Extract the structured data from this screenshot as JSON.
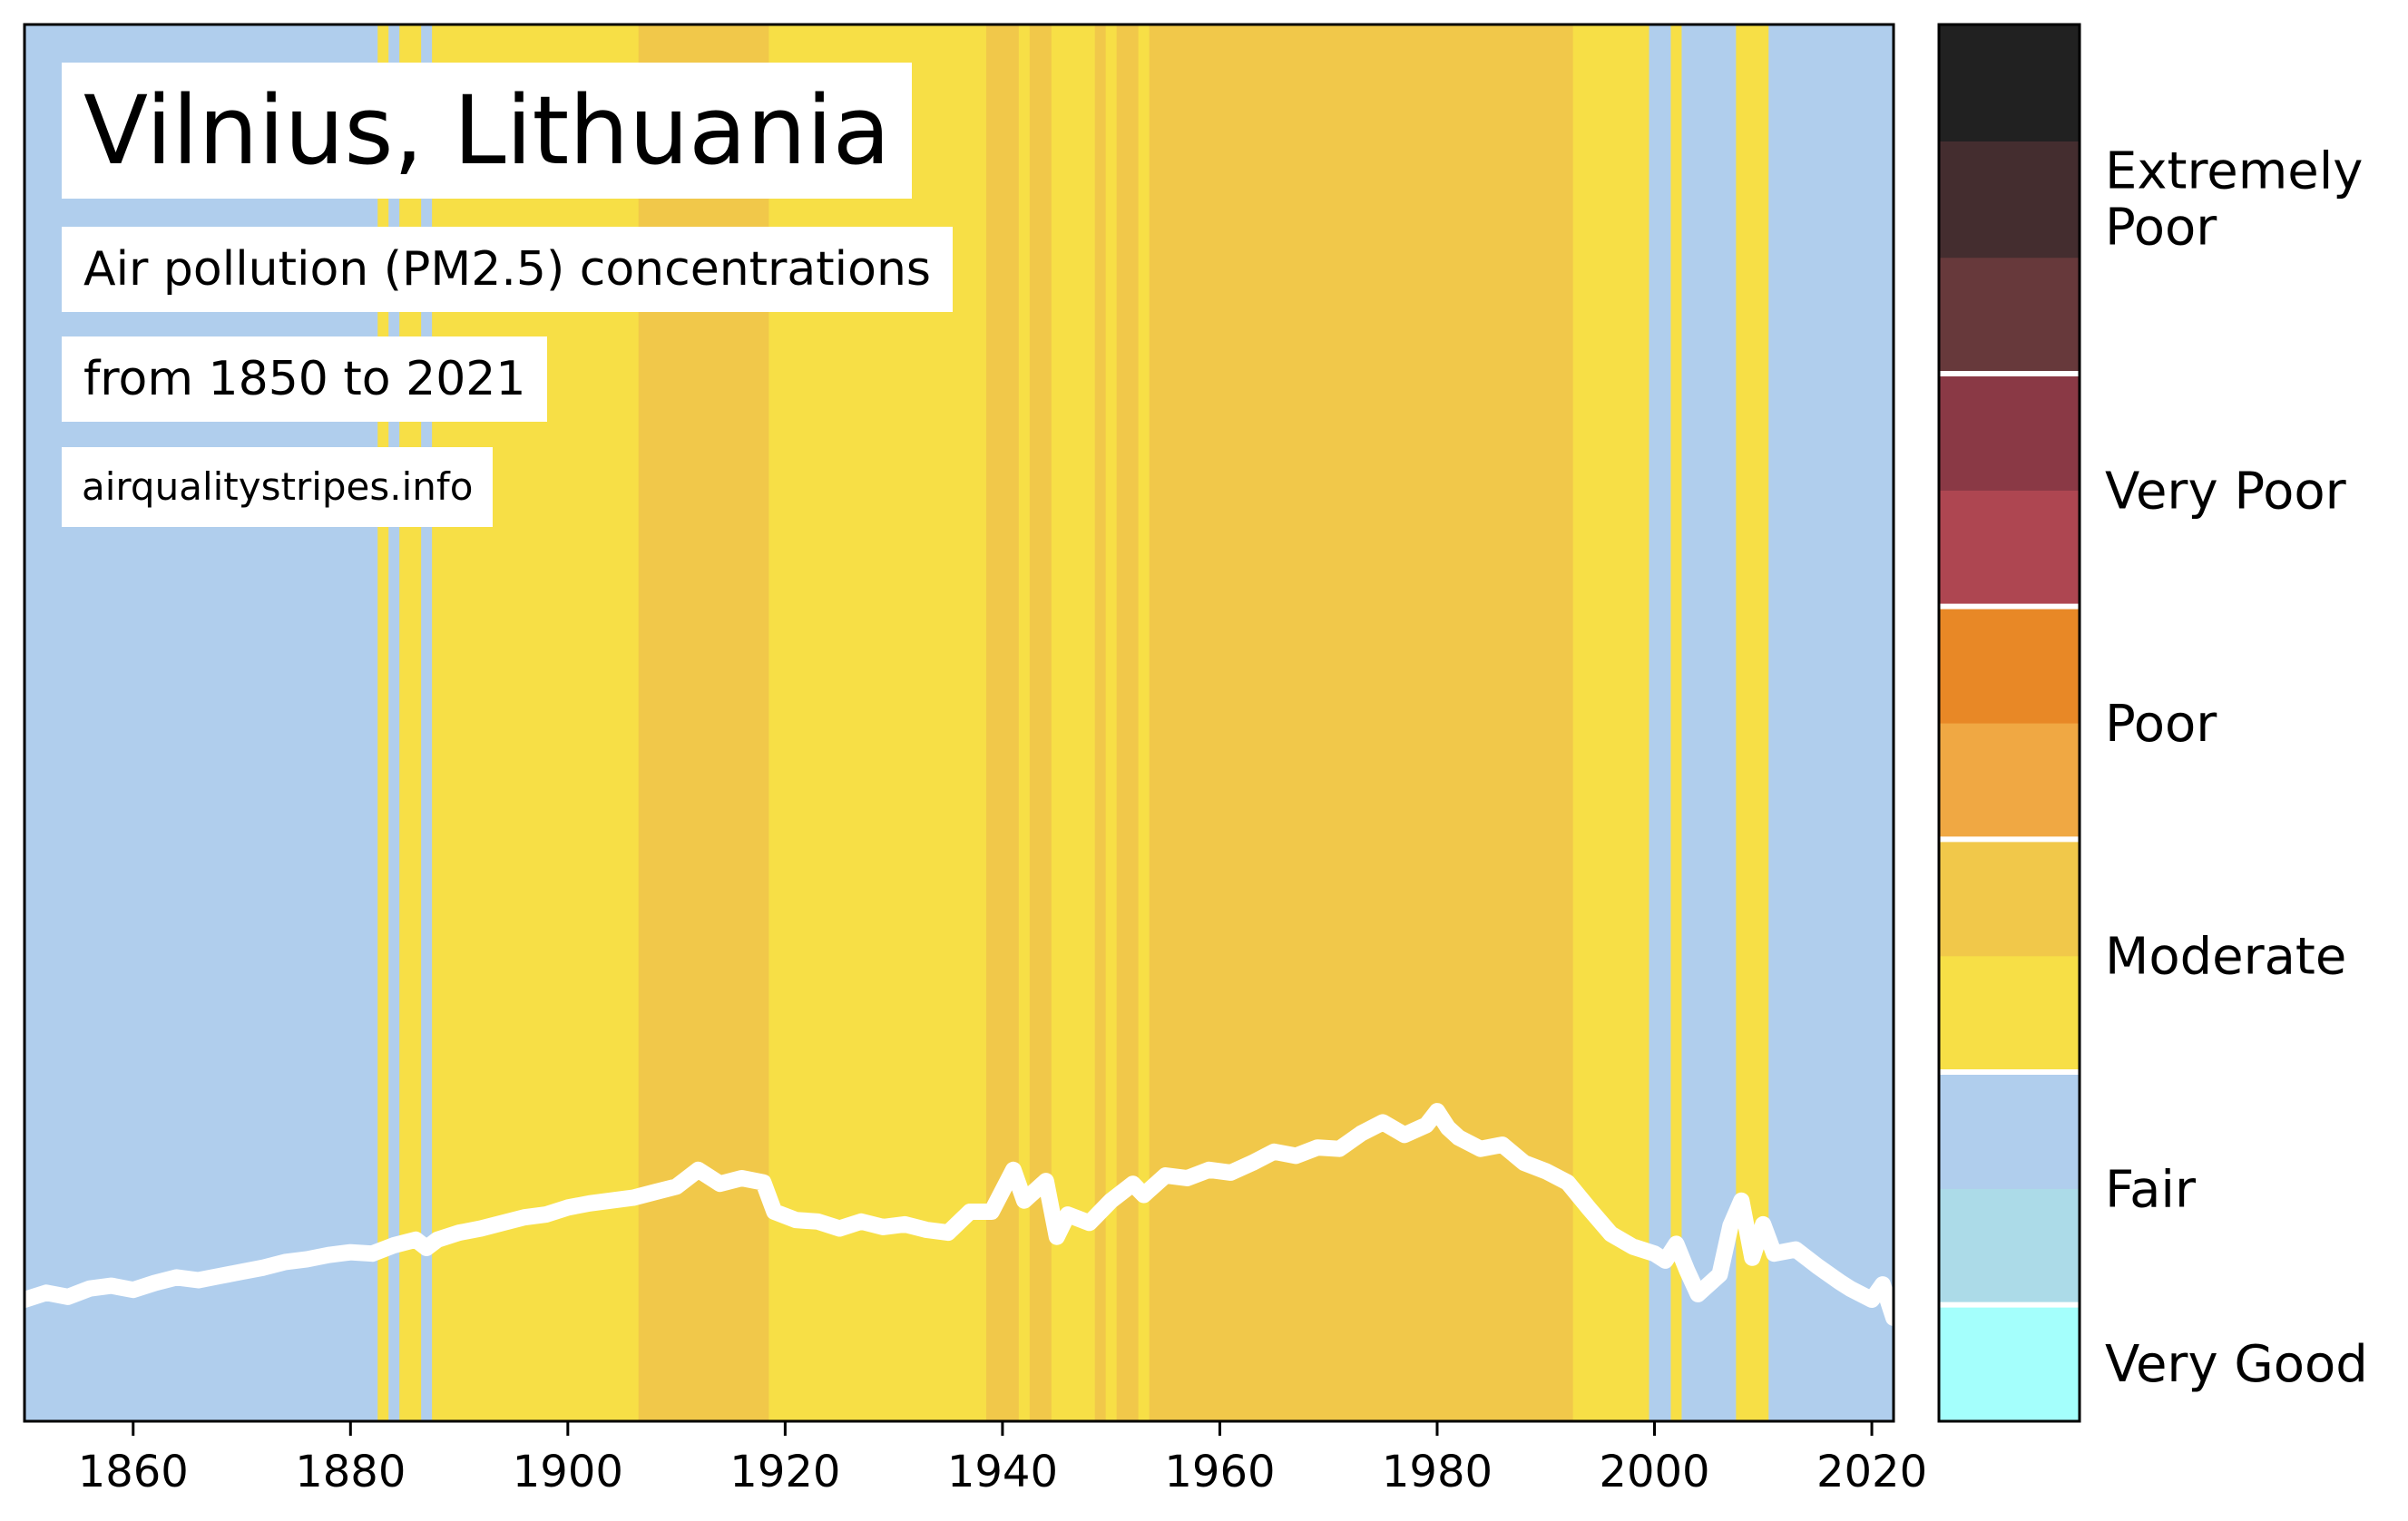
{
  "header": {
    "title": "Vilnius, Lithuania",
    "subtitle": "Air pollution (PM2.5) concentrations",
    "range": "from 1850 to 2021",
    "source": "airqualitystripes.info"
  },
  "colors": {
    "fair": "#b0ceed",
    "moderate_low": "#f7df46",
    "moderate_high": "#f1c84a",
    "line": "#ffffff",
    "scale": [
      "#a4fffc",
      "#acdbe8",
      "#b0ceed",
      "#b0ceed",
      "#f7df46",
      "#f1c84a",
      "#f0a843",
      "#e88826",
      "#ae4651",
      "#8a3945",
      "#67393b",
      "#442d2f",
      "#212121"
    ]
  },
  "chart_data": {
    "type": "area",
    "x_start": 1850,
    "x_end": 2022,
    "xticks": [
      "1860",
      "1880",
      "1900",
      "1920",
      "1940",
      "1960",
      "1980",
      "2000",
      "2020"
    ],
    "stripes": [
      {
        "from": 1850,
        "to": 1882.5,
        "class": "fair"
      },
      {
        "from": 1882.5,
        "to": 1883.5,
        "class": "moderate_low"
      },
      {
        "from": 1883.5,
        "to": 1884.5,
        "class": "fair"
      },
      {
        "from": 1884.5,
        "to": 1886.5,
        "class": "moderate_low"
      },
      {
        "from": 1886.5,
        "to": 1887.5,
        "class": "fair"
      },
      {
        "from": 1887.5,
        "to": 1906.5,
        "class": "moderate_low"
      },
      {
        "from": 1906.5,
        "to": 1918.5,
        "class": "moderate_high"
      },
      {
        "from": 1918.5,
        "to": 1938.5,
        "class": "moderate_low"
      },
      {
        "from": 1938.5,
        "to": 1941.5,
        "class": "moderate_high"
      },
      {
        "from": 1941.5,
        "to": 1942.5,
        "class": "moderate_low"
      },
      {
        "from": 1942.5,
        "to": 1944.5,
        "class": "moderate_high"
      },
      {
        "from": 1944.5,
        "to": 1948.5,
        "class": "moderate_low"
      },
      {
        "from": 1948.5,
        "to": 1949.5,
        "class": "moderate_high"
      },
      {
        "from": 1949.5,
        "to": 1950.5,
        "class": "moderate_low"
      },
      {
        "from": 1950.5,
        "to": 1952.5,
        "class": "moderate_high"
      },
      {
        "from": 1952.5,
        "to": 1953.5,
        "class": "moderate_low"
      },
      {
        "from": 1953.5,
        "to": 1992.5,
        "class": "moderate_high"
      },
      {
        "from": 1992.5,
        "to": 1999.5,
        "class": "moderate_low"
      },
      {
        "from": 1999.5,
        "to": 2001.5,
        "class": "fair"
      },
      {
        "from": 2001.5,
        "to": 2002.5,
        "class": "moderate_low"
      },
      {
        "from": 2002.5,
        "to": 2007.5,
        "class": "fair"
      },
      {
        "from": 2007.5,
        "to": 2010.5,
        "class": "moderate_low"
      },
      {
        "from": 2010.5,
        "to": 2022,
        "class": "fair"
      }
    ],
    "line_ylim": [
      0,
      1
    ],
    "line": [
      [
        1850,
        0.087
      ],
      [
        1852,
        0.092
      ],
      [
        1854,
        0.089
      ],
      [
        1856,
        0.095
      ],
      [
        1858,
        0.097
      ],
      [
        1860,
        0.094
      ],
      [
        1862,
        0.099
      ],
      [
        1864,
        0.103
      ],
      [
        1866,
        0.101
      ],
      [
        1868,
        0.104
      ],
      [
        1870,
        0.107
      ],
      [
        1872,
        0.11
      ],
      [
        1874,
        0.114
      ],
      [
        1876,
        0.116
      ],
      [
        1878,
        0.119
      ],
      [
        1880,
        0.121
      ],
      [
        1882,
        0.12
      ],
      [
        1884,
        0.126
      ],
      [
        1886,
        0.13
      ],
      [
        1887,
        0.124
      ],
      [
        1888,
        0.13
      ],
      [
        1890,
        0.135
      ],
      [
        1892,
        0.138
      ],
      [
        1894,
        0.142
      ],
      [
        1896,
        0.146
      ],
      [
        1898,
        0.148
      ],
      [
        1900,
        0.153
      ],
      [
        1902,
        0.156
      ],
      [
        1904,
        0.158
      ],
      [
        1906,
        0.16
      ],
      [
        1908,
        0.164
      ],
      [
        1910,
        0.168
      ],
      [
        1912,
        0.18
      ],
      [
        1914,
        0.17
      ],
      [
        1916,
        0.174
      ],
      [
        1918,
        0.171
      ],
      [
        1919,
        0.15
      ],
      [
        1921,
        0.144
      ],
      [
        1923,
        0.143
      ],
      [
        1925,
        0.138
      ],
      [
        1927,
        0.143
      ],
      [
        1929,
        0.139
      ],
      [
        1931,
        0.141
      ],
      [
        1933,
        0.137
      ],
      [
        1935,
        0.135
      ],
      [
        1937,
        0.15
      ],
      [
        1939,
        0.15
      ],
      [
        1941,
        0.18
      ],
      [
        1942,
        0.158
      ],
      [
        1944,
        0.172
      ],
      [
        1945,
        0.132
      ],
      [
        1946,
        0.148
      ],
      [
        1948,
        0.142
      ],
      [
        1950,
        0.158
      ],
      [
        1952,
        0.17
      ],
      [
        1953,
        0.162
      ],
      [
        1955,
        0.176
      ],
      [
        1957,
        0.174
      ],
      [
        1959,
        0.18
      ],
      [
        1961,
        0.178
      ],
      [
        1963,
        0.185
      ],
      [
        1965,
        0.193
      ],
      [
        1967,
        0.19
      ],
      [
        1969,
        0.196
      ],
      [
        1971,
        0.195
      ],
      [
        1973,
        0.206
      ],
      [
        1975,
        0.214
      ],
      [
        1977,
        0.205
      ],
      [
        1979,
        0.212
      ],
      [
        1980,
        0.222
      ],
      [
        1981,
        0.21
      ],
      [
        1982,
        0.203
      ],
      [
        1984,
        0.195
      ],
      [
        1986,
        0.198
      ],
      [
        1988,
        0.185
      ],
      [
        1990,
        0.179
      ],
      [
        1992,
        0.171
      ],
      [
        1994,
        0.152
      ],
      [
        1996,
        0.134
      ],
      [
        1998,
        0.125
      ],
      [
        2000,
        0.12
      ],
      [
        2001,
        0.115
      ],
      [
        2002,
        0.127
      ],
      [
        2003,
        0.108
      ],
      [
        2004,
        0.091
      ],
      [
        2006,
        0.105
      ],
      [
        2007,
        0.14
      ],
      [
        2008,
        0.158
      ],
      [
        2009,
        0.117
      ],
      [
        2010,
        0.141
      ],
      [
        2011,
        0.12
      ],
      [
        2013,
        0.123
      ],
      [
        2015,
        0.111
      ],
      [
        2017,
        0.1
      ],
      [
        2018,
        0.095
      ],
      [
        2020,
        0.087
      ],
      [
        2021,
        0.098
      ],
      [
        2022,
        0.074
      ]
    ]
  },
  "legend": {
    "categories": [
      {
        "label": "Extremely Poor",
        "line1": "Extremely",
        "line2": "Poor"
      },
      {
        "label": "Very Poor"
      },
      {
        "label": "Poor"
      },
      {
        "label": "Moderate"
      },
      {
        "label": "Fair"
      },
      {
        "label": "Very Good"
      }
    ]
  }
}
